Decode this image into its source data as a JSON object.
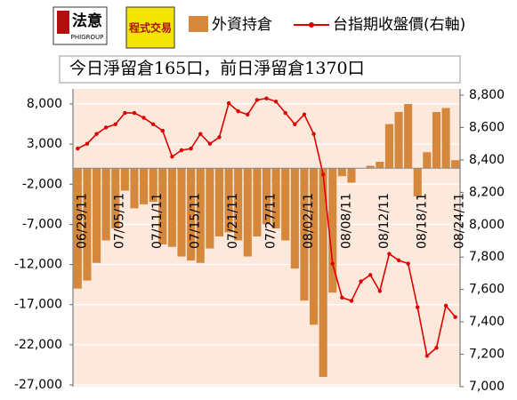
{
  "chart_data": {
    "type": "bar_line",
    "logo_text": "法意",
    "logo_subtext": "PHIGROUP",
    "logo2_text": "程式交易",
    "subtitle": "今日淨留倉165口，前日淨留倉1370口",
    "categories": [
      "06/29/11",
      null,
      null,
      null,
      "07/05/11",
      null,
      null,
      null,
      "07/11/11",
      null,
      null,
      null,
      "07/15/11",
      null,
      null,
      null,
      "07/21/11",
      null,
      null,
      null,
      "07/27/11",
      null,
      null,
      null,
      "08/02/11",
      null,
      null,
      null,
      "08/08/11",
      null,
      null,
      null,
      "08/12/11",
      null,
      null,
      null,
      "08/18/11",
      null,
      null,
      null,
      "08/24/11"
    ],
    "series": [
      {
        "name": "外資持倉",
        "color": "#d5883c",
        "type": "bar",
        "values": [
          -15000,
          -14000,
          -11800,
          -9000,
          -7500,
          -2800,
          -5000,
          -4500,
          -4200,
          -9500,
          -9800,
          -11000,
          -11500,
          -11800,
          -10000,
          -8500,
          -8000,
          -9000,
          -11000,
          -8500,
          -7000,
          -7500,
          -9000,
          -12500,
          -16500,
          -19500,
          -26000,
          -15500,
          -1000,
          -1800,
          0,
          300,
          800,
          5500,
          7000,
          8000,
          -3500,
          2000,
          7000,
          7500,
          1000
        ]
      },
      {
        "name": "台指期收盤價(右軸)",
        "color": "#e00000",
        "type": "line",
        "axis": "y2",
        "values": [
          8470,
          8500,
          8560,
          8600,
          8620,
          8690,
          8690,
          8660,
          8620,
          8580,
          8420,
          8460,
          8470,
          8560,
          8500,
          8540,
          8750,
          8700,
          8680,
          8770,
          8780,
          8760,
          8690,
          8620,
          8680,
          8560,
          8310,
          7760,
          7550,
          7530,
          7650,
          7690,
          7590,
          7820,
          7780,
          7760,
          7490,
          7190,
          7240,
          7500,
          7430
        ]
      }
    ],
    "ylim": [
      -27000,
      8000
    ],
    "yticks": [
      {
        "value": 8000,
        "label": "8,000"
      },
      {
        "value": 3000,
        "label": "3,000"
      },
      {
        "value": -2000,
        "label": "-2,000"
      },
      {
        "value": -7000,
        "label": "-7,000"
      },
      {
        "value": -12000,
        "label": "-12,000"
      },
      {
        "value": -17000,
        "label": "-17,000"
      },
      {
        "value": -22000,
        "label": "-22,000"
      },
      {
        "value": -27000,
        "label": "-27,000"
      }
    ],
    "y2lim": [
      7000,
      8800
    ],
    "y2ticks": [
      {
        "value": 8800,
        "label": "8,800"
      },
      {
        "value": 8600,
        "label": "8,600"
      },
      {
        "value": 8400,
        "label": "8,400"
      },
      {
        "value": 8200,
        "label": "8,200"
      },
      {
        "value": 8000,
        "label": "8,000"
      },
      {
        "value": 7800,
        "label": "7,800"
      },
      {
        "value": 7600,
        "label": "7,600"
      },
      {
        "value": 7400,
        "label": "7,400"
      },
      {
        "value": 7200,
        "label": "7,200"
      },
      {
        "value": 7000,
        "label": "7,000"
      }
    ],
    "grid": true
  }
}
